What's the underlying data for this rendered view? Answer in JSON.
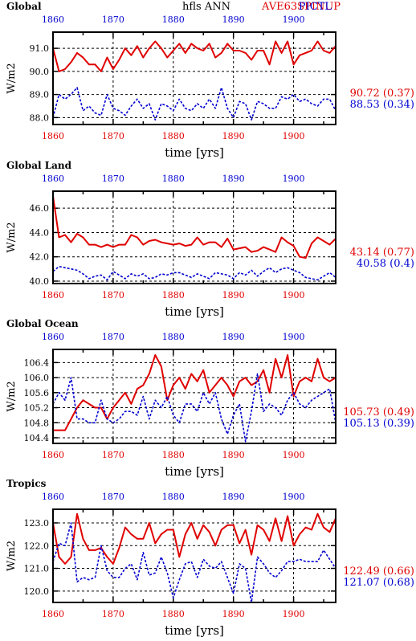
{
  "figure": {
    "variable_title": "hfls ANN",
    "case_red": "AVE63SPINUP",
    "case_blue": "PICTL",
    "colors": {
      "red": "#e00000",
      "blue": "#0000d0",
      "axis": "#000000"
    }
  },
  "chart_data": [
    {
      "type": "line",
      "title": "Global",
      "xlabel": "time [yrs]",
      "ylabel": "W/m2",
      "xlim": [
        1860,
        1907
      ],
      "ylim": [
        87.7,
        91.7
      ],
      "yticks": [
        "88.0",
        "89.0",
        "90.0",
        "91.0"
      ],
      "ytick_values": [
        88.0,
        89.0,
        90.0,
        91.0
      ],
      "xticks": [
        "1860",
        "1870",
        "1880",
        "1890",
        "1900"
      ],
      "xtick_values": [
        1860,
        1870,
        1880,
        1890,
        1900
      ],
      "grid": true,
      "series": [
        {
          "name": "AVE63SPINUP",
          "color": "#e00000",
          "style": "solid",
          "summary": "90.72 (0.37)",
          "values": [
            91.0,
            90.0,
            90.1,
            90.4,
            90.8,
            90.6,
            90.3,
            90.3,
            90.0,
            90.6,
            90.1,
            90.5,
            91.0,
            90.7,
            91.1,
            90.6,
            91.0,
            91.3,
            91.0,
            90.6,
            90.9,
            91.2,
            90.8,
            91.2,
            91.0,
            90.9,
            91.2,
            90.6,
            90.8,
            91.2,
            90.9,
            90.9,
            90.8,
            90.5,
            90.9,
            90.9,
            90.3,
            91.3,
            90.8,
            91.3,
            90.3,
            90.7,
            90.8,
            90.9,
            91.3,
            90.9,
            90.8,
            91.1
          ]
        },
        {
          "name": "PICTL",
          "color": "#0000d0",
          "style": "dotted",
          "summary": "88.53 (0.34)",
          "values": [
            88.0,
            89.0,
            88.8,
            89.0,
            89.3,
            88.3,
            88.5,
            88.2,
            88.1,
            89.0,
            88.4,
            88.3,
            88.1,
            88.5,
            88.8,
            88.4,
            88.6,
            87.9,
            88.6,
            88.5,
            88.3,
            88.8,
            88.4,
            88.3,
            88.6,
            88.4,
            88.8,
            88.4,
            89.3,
            88.4,
            88.0,
            88.7,
            88.6,
            87.9,
            88.7,
            88.6,
            88.4,
            88.4,
            88.9,
            88.8,
            89.0,
            88.7,
            88.8,
            88.6,
            88.5,
            88.8,
            88.8,
            88.3
          ]
        }
      ]
    },
    {
      "type": "line",
      "title": "Global Land",
      "xlabel": "time [yrs]",
      "ylabel": "W/m2",
      "xlim": [
        1860,
        1907
      ],
      "ylim": [
        39.8,
        47.4
      ],
      "yticks": [
        "40.0",
        "42.0",
        "44.0",
        "46.0"
      ],
      "ytick_values": [
        40.0,
        42.0,
        44.0,
        46.0
      ],
      "xticks": [
        "1860",
        "1870",
        "1880",
        "1890",
        "1900"
      ],
      "xtick_values": [
        1860,
        1870,
        1880,
        1890,
        1900
      ],
      "grid": true,
      "series": [
        {
          "name": "AVE63SPINUP",
          "color": "#e00000",
          "style": "solid",
          "summary": "43.14 (0.77)",
          "values": [
            47.0,
            43.6,
            43.8,
            43.2,
            43.9,
            43.6,
            43.0,
            43.0,
            42.8,
            43.0,
            42.8,
            43.0,
            43.0,
            43.8,
            43.6,
            43.0,
            43.3,
            43.4,
            43.2,
            43.1,
            43.0,
            43.1,
            42.9,
            43.0,
            43.6,
            43.0,
            43.2,
            43.2,
            42.8,
            43.5,
            42.6,
            42.7,
            42.8,
            42.4,
            42.5,
            42.8,
            42.6,
            42.4,
            43.6,
            43.2,
            42.9,
            42.0,
            41.9,
            43.1,
            43.6,
            43.3,
            43.0,
            43.5
          ]
        },
        {
          "name": "PICTL",
          "color": "#0000d0",
          "style": "dotted",
          "summary": "40.58 (0.4)",
          "values": [
            40.8,
            41.2,
            41.1,
            41.0,
            40.9,
            40.6,
            40.2,
            40.4,
            40.5,
            40.1,
            40.8,
            40.5,
            40.2,
            40.6,
            40.4,
            40.6,
            40.2,
            40.3,
            40.6,
            40.5,
            40.7,
            40.7,
            40.5,
            40.3,
            40.6,
            40.4,
            40.2,
            40.7,
            40.6,
            40.5,
            40.2,
            40.7,
            40.5,
            40.9,
            40.4,
            40.8,
            41.1,
            40.7,
            41.0,
            41.1,
            40.9,
            40.7,
            40.3,
            40.2,
            40.1,
            40.4,
            40.7,
            40.3
          ]
        }
      ]
    },
    {
      "type": "line",
      "title": "Global Ocean",
      "xlabel": "time [yrs]",
      "ylabel": "W/m2",
      "xlim": [
        1860,
        1907
      ],
      "ylim": [
        104.25,
        106.75
      ],
      "yticks": [
        "104.4",
        "104.8",
        "105.2",
        "105.6",
        "106.0",
        "106.4"
      ],
      "ytick_values": [
        104.4,
        104.8,
        105.2,
        105.6,
        106.0,
        106.4
      ],
      "xticks": [
        "1860",
        "1870",
        "1880",
        "1890",
        "1900"
      ],
      "xtick_values": [
        1860,
        1870,
        1880,
        1890,
        1900
      ],
      "grid": true,
      "series": [
        {
          "name": "AVE63SPINUP",
          "color": "#e00000",
          "style": "solid",
          "summary": "105.73 (0.49)",
          "values": [
            104.6,
            104.6,
            104.6,
            104.9,
            105.2,
            105.4,
            105.3,
            105.2,
            105.2,
            104.9,
            105.2,
            105.4,
            105.6,
            105.3,
            105.7,
            105.8,
            106.1,
            106.6,
            106.3,
            105.4,
            105.8,
            106.0,
            105.7,
            106.1,
            105.9,
            106.2,
            105.6,
            105.8,
            106.0,
            105.8,
            105.5,
            105.9,
            106.0,
            105.8,
            105.9,
            106.2,
            105.6,
            106.5,
            106.0,
            106.6,
            105.5,
            105.9,
            106.0,
            105.9,
            106.5,
            106.0,
            105.9,
            106.0
          ]
        },
        {
          "name": "PICTL",
          "color": "#0000d0",
          "style": "dotted",
          "summary": "105.13 (0.39)",
          "values": [
            105.3,
            105.6,
            105.4,
            106.0,
            104.9,
            104.9,
            104.8,
            104.8,
            105.4,
            104.9,
            104.8,
            104.9,
            105.1,
            105.1,
            105.0,
            105.5,
            104.9,
            105.4,
            105.2,
            105.5,
            105.0,
            104.8,
            105.3,
            105.3,
            105.1,
            105.6,
            105.3,
            105.6,
            104.9,
            104.5,
            105.0,
            105.3,
            104.3,
            105.1,
            106.1,
            105.1,
            105.3,
            105.2,
            105.0,
            105.4,
            105.6,
            105.3,
            105.2,
            105.4,
            105.5,
            105.6,
            105.7,
            104.8
          ]
        }
      ]
    },
    {
      "type": "line",
      "title": "Tropics",
      "xlabel": "time [yrs]",
      "ylabel": "W/m2",
      "xlim": [
        1860,
        1907
      ],
      "ylim": [
        119.5,
        123.6
      ],
      "yticks": [
        "120.0",
        "121.0",
        "122.0",
        "123.0"
      ],
      "ytick_values": [
        120.0,
        121.0,
        122.0,
        123.0
      ],
      "xticks": [
        "1860",
        "1870",
        "1880",
        "1890",
        "1900"
      ],
      "xtick_values": [
        1860,
        1870,
        1880,
        1890,
        1900
      ],
      "grid": true,
      "series": [
        {
          "name": "AVE63SPINUP",
          "color": "#e00000",
          "style": "solid",
          "summary": "122.49 (0.66)",
          "values": [
            123.0,
            121.5,
            121.2,
            121.5,
            123.4,
            122.3,
            121.8,
            121.8,
            121.9,
            121.5,
            121.2,
            121.9,
            122.8,
            122.5,
            122.3,
            122.3,
            123.0,
            122.1,
            122.5,
            122.7,
            122.7,
            121.5,
            122.5,
            123.0,
            122.3,
            122.9,
            122.6,
            122.0,
            122.7,
            122.9,
            122.9,
            122.1,
            122.7,
            121.6,
            122.9,
            122.7,
            122.2,
            123.2,
            122.2,
            123.3,
            122.0,
            122.5,
            122.8,
            122.7,
            123.4,
            122.8,
            122.6,
            123.2
          ]
        },
        {
          "name": "PICTL",
          "color": "#0000d0",
          "style": "dotted",
          "summary": "121.07 (0.68)",
          "values": [
            121.3,
            122.1,
            122.0,
            123.0,
            120.4,
            120.6,
            120.5,
            120.6,
            122.0,
            120.9,
            120.6,
            120.6,
            121.0,
            121.2,
            120.5,
            121.7,
            120.7,
            120.8,
            121.5,
            120.8,
            119.7,
            120.5,
            121.2,
            121.3,
            120.6,
            121.4,
            121.1,
            121.0,
            121.3,
            120.6,
            119.9,
            121.2,
            121.0,
            119.5,
            121.5,
            121.2,
            120.8,
            120.6,
            120.9,
            121.3,
            121.3,
            121.4,
            121.3,
            121.3,
            121.3,
            121.8,
            121.4,
            121.0
          ]
        }
      ]
    }
  ]
}
